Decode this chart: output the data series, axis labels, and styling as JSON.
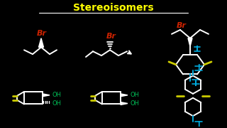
{
  "background_color": "#000000",
  "title": "Stereoisomers",
  "title_color": "#FFFF00",
  "white": "#FFFFFF",
  "red": "#CC2200",
  "green": "#00BB55",
  "yellow": "#CCCC00",
  "cyan": "#00AADD"
}
